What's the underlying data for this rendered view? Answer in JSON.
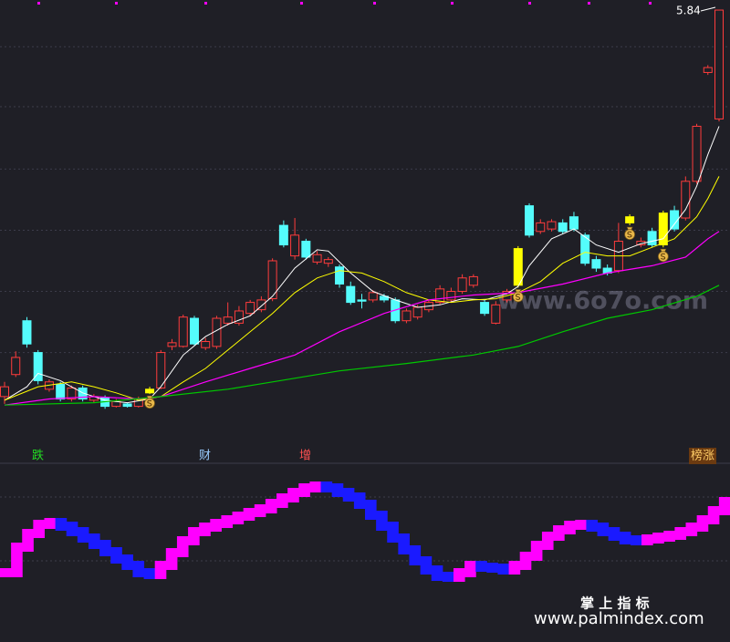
{
  "chart_data": [
    {
      "type": "candlestick",
      "open": [
        2.68,
        2.86,
        3.3,
        3.04,
        2.74,
        2.78,
        2.66,
        2.75,
        2.65,
        2.67,
        2.6,
        2.62,
        2.6,
        2.71,
        2.75,
        3.09,
        3.09,
        3.32,
        3.08,
        3.09,
        3.28,
        3.28,
        3.36,
        3.39,
        3.48,
        4.08,
        3.83,
        3.95,
        3.78,
        3.77,
        3.74,
        3.58,
        3.47,
        3.47,
        3.5,
        3.47,
        3.3,
        3.33,
        3.39,
        3.45,
        3.47,
        3.54,
        3.59,
        3.45,
        3.28,
        3.47,
        3.59,
        4.24,
        4.03,
        4.05,
        4.1,
        4.15,
        4.0,
        3.8,
        3.73,
        3.71,
        4.1,
        3.92,
        4.03,
        3.92,
        4.2,
        4.14,
        4.44,
        5.33,
        4.95
      ],
      "close": [
        2.76,
        3.0,
        3.11,
        2.81,
        2.8,
        2.66,
        2.75,
        2.66,
        2.68,
        2.6,
        2.64,
        2.6,
        2.66,
        2.74,
        3.04,
        3.12,
        3.33,
        3.11,
        3.13,
        3.32,
        3.33,
        3.38,
        3.45,
        3.47,
        3.79,
        3.92,
        4.0,
        3.82,
        3.84,
        3.8,
        3.6,
        3.45,
        3.46,
        3.53,
        3.47,
        3.3,
        3.38,
        3.41,
        3.45,
        3.56,
        3.54,
        3.65,
        3.66,
        3.36,
        3.43,
        3.54,
        3.89,
        4.0,
        4.1,
        4.11,
        4.03,
        4.05,
        3.77,
        3.73,
        3.69,
        3.95,
        4.15,
        3.95,
        3.92,
        4.18,
        4.05,
        4.44,
        4.89,
        5.37,
        5.84
      ],
      "high": [
        2.8,
        3.05,
        3.33,
        3.06,
        2.82,
        2.8,
        2.77,
        2.77,
        2.7,
        2.69,
        2.66,
        2.63,
        2.68,
        2.76,
        3.06,
        3.15,
        3.35,
        3.34,
        3.16,
        3.34,
        3.45,
        3.42,
        3.47,
        3.5,
        3.81,
        4.12,
        4.14,
        3.97,
        3.87,
        3.82,
        3.76,
        3.62,
        3.52,
        3.55,
        3.52,
        3.49,
        3.4,
        3.43,
        3.47,
        3.59,
        3.57,
        3.68,
        3.68,
        3.47,
        3.46,
        3.56,
        3.91,
        4.26,
        4.13,
        4.13,
        4.13,
        4.19,
        4.02,
        3.83,
        3.76,
        4.1,
        4.17,
        3.98,
        4.06,
        4.2,
        4.24,
        4.48,
        4.91,
        5.39,
        5.84
      ],
      "low": [
        2.62,
        2.84,
        3.08,
        2.78,
        2.72,
        2.64,
        2.64,
        2.64,
        2.63,
        2.58,
        2.59,
        2.59,
        2.59,
        2.7,
        2.74,
        3.06,
        3.08,
        3.1,
        3.06,
        3.07,
        3.26,
        3.26,
        3.34,
        3.37,
        3.46,
        3.9,
        3.8,
        3.8,
        3.76,
        3.74,
        3.57,
        3.43,
        3.4,
        3.45,
        3.45,
        3.28,
        3.28,
        3.31,
        3.37,
        3.43,
        3.45,
        3.52,
        3.57,
        3.34,
        3.27,
        3.45,
        3.57,
        3.98,
        4.01,
        4.03,
        4.01,
        4.03,
        3.75,
        3.7,
        3.67,
        3.69,
        4.08,
        3.9,
        3.9,
        3.9,
        4.03,
        4.12,
        4.42,
        5.31,
        4.93
      ],
      "up_color": "#ff3c3c",
      "down_color": "#54fcfc",
      "highlight": [
        13,
        46,
        56,
        59
      ],
      "highlight_color": "#ffff00",
      "ylim": [
        2.5,
        5.9
      ],
      "gridlines": [
        3.04,
        3.54,
        4.04,
        4.54,
        5.05,
        5.54
      ],
      "max_price": 5.84,
      "markers": [
        "跌",
        "财",
        "增",
        "榜涨"
      ],
      "series": [
        {
          "color": "#ffffff",
          "x": [
            0,
            2,
            3,
            5,
            7,
            9,
            11,
            13,
            14,
            16,
            18,
            20,
            22,
            24,
            26,
            28,
            29,
            31,
            33,
            35,
            37,
            39,
            41,
            43,
            45,
            46,
            47,
            49,
            51,
            53,
            55,
            57,
            59,
            61,
            62,
            63,
            64
          ],
          "values": [
            2.65,
            2.76,
            2.87,
            2.81,
            2.71,
            2.65,
            2.63,
            2.66,
            2.76,
            3.02,
            3.17,
            3.27,
            3.34,
            3.5,
            3.73,
            3.88,
            3.87,
            3.69,
            3.54,
            3.47,
            3.41,
            3.43,
            3.48,
            3.47,
            3.52,
            3.58,
            3.75,
            3.97,
            4.05,
            3.92,
            3.86,
            3.93,
            3.97,
            4.21,
            4.4,
            4.66,
            4.89
          ]
        },
        {
          "color": "#ffff00",
          "x": [
            0,
            3,
            6,
            8,
            10,
            12,
            14,
            16,
            18,
            20,
            22,
            24,
            26,
            28,
            30,
            32,
            34,
            36,
            38,
            40,
            42,
            44,
            46,
            48,
            50,
            52,
            54,
            56,
            58,
            60,
            62,
            63,
            64
          ],
          "values": [
            2.65,
            2.76,
            2.8,
            2.76,
            2.71,
            2.65,
            2.68,
            2.8,
            2.91,
            3.06,
            3.21,
            3.36,
            3.53,
            3.65,
            3.71,
            3.69,
            3.62,
            3.53,
            3.47,
            3.45,
            3.47,
            3.48,
            3.53,
            3.62,
            3.77,
            3.86,
            3.83,
            3.83,
            3.9,
            3.97,
            4.15,
            4.3,
            4.48
          ]
        },
        {
          "color": "#ff00ff",
          "x": [
            0,
            4,
            8,
            12,
            14,
            18,
            22,
            26,
            30,
            34,
            38,
            42,
            46,
            50,
            54,
            58,
            61,
            63,
            64
          ],
          "values": [
            2.61,
            2.66,
            2.68,
            2.66,
            2.68,
            2.8,
            2.91,
            3.02,
            3.21,
            3.36,
            3.47,
            3.51,
            3.53,
            3.6,
            3.69,
            3.75,
            3.82,
            3.97,
            4.03
          ]
        },
        {
          "color": "#00c800",
          "x": [
            0,
            8,
            14,
            20,
            24,
            30,
            36,
            42,
            46,
            50,
            54,
            58,
            62,
            64
          ],
          "values": [
            2.61,
            2.63,
            2.68,
            2.74,
            2.8,
            2.89,
            2.95,
            3.02,
            3.09,
            3.21,
            3.32,
            3.39,
            3.5,
            3.59
          ]
        }
      ]
    },
    {
      "type": "step-oscillator",
      "values": [
        22,
        50,
        65,
        75,
        77,
        73,
        67,
        60,
        53,
        45,
        37,
        30,
        22,
        20,
        30,
        44,
        57,
        67,
        72,
        76,
        80,
        84,
        88,
        92,
        98,
        104,
        110,
        115,
        117,
        115,
        110,
        105,
        97,
        85,
        73,
        60,
        47,
        35,
        25,
        18,
        17,
        22,
        30,
        28,
        27,
        25,
        30,
        40,
        52,
        62,
        69,
        74,
        75,
        72,
        67,
        62,
        58,
        57,
        59,
        61,
        63,
        67,
        72,
        80,
        90,
        100
      ],
      "up_color": "#ff00ff",
      "down_color": "#1a1aff",
      "ylim": [
        0,
        130
      ],
      "gridlines": [
        35,
        105
      ]
    }
  ],
  "watermark": {
    "site": "www.6o7o.com",
    "brand": "掌 上 指 标",
    "url": "www.palmindex.com"
  }
}
